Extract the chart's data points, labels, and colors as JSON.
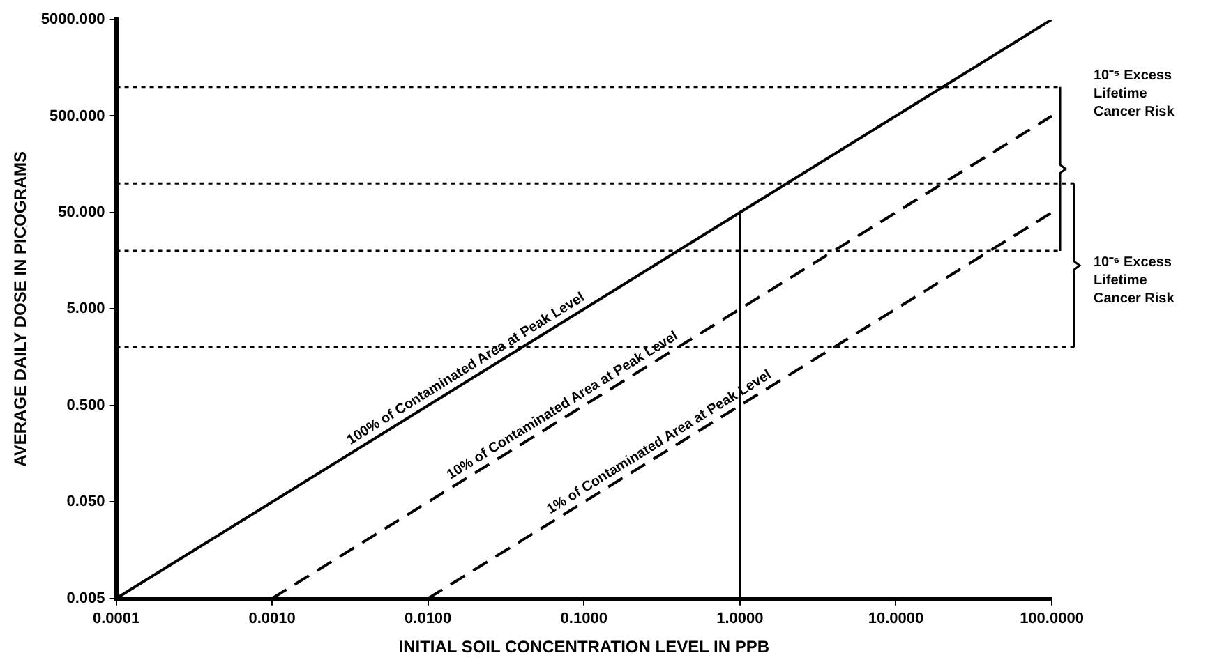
{
  "chart_data": {
    "type": "line",
    "xlabel": "INITIAL SOIL CONCENTRATION LEVEL IN PPB",
    "ylabel": "AVERAGE DAILY DOSE IN PICOGRAMS",
    "log": "xy",
    "xlim": [
      0.0001,
      100
    ],
    "xticks": [
      {
        "value": 0.0001,
        "label": "0.0001"
      },
      {
        "value": 0.001,
        "label": "0.0010"
      },
      {
        "value": 0.01,
        "label": "0.0100"
      },
      {
        "value": 0.1,
        "label": "0.1000"
      },
      {
        "value": 1,
        "label": "1.0000"
      },
      {
        "value": 10,
        "label": "10.0000"
      },
      {
        "value": 100,
        "label": "100.0000"
      }
    ],
    "ylim": [
      0.005,
      5000
    ],
    "yticks": [
      {
        "value": 0.005,
        "label": "0.005"
      },
      {
        "value": 0.05,
        "label": "0.050"
      },
      {
        "value": 0.5,
        "label": "0.500"
      },
      {
        "value": 5,
        "label": "5.000"
      },
      {
        "value": 50,
        "label": "50.000"
      },
      {
        "value": 500,
        "label": "500.000"
      },
      {
        "value": 5000,
        "label": "5000.000"
      }
    ],
    "grid": false,
    "legend": false,
    "marker": "none",
    "series": [
      {
        "name": "100% of Contaminated Area at Peak Level",
        "color": "#000000",
        "line_style": "solid",
        "x": [
          0.0001,
          100
        ],
        "values": [
          0.005,
          5000
        ]
      },
      {
        "name": "10% of Contaminated Area at Peak Level",
        "color": "#000000",
        "line_style": "dashed",
        "x": [
          0.001,
          100
        ],
        "values": [
          0.005,
          500
        ]
      },
      {
        "name": "1% of Contaminated Area at Peak Level",
        "color": "#000000",
        "line_style": "dashed",
        "x": [
          0.01,
          100
        ],
        "values": [
          0.005,
          50
        ]
      },
      {
        "color": "#000000",
        "line_style": "solid",
        "x": [
          1,
          1
        ],
        "values": [
          0.005,
          50
        ]
      }
    ],
    "ref_lines": [
      {
        "axis": "y",
        "value": 1000,
        "line_style": "dotted"
      },
      {
        "axis": "y",
        "value": 100,
        "line_style": "dotted"
      },
      {
        "axis": "y",
        "value": 20,
        "line_style": "dotted"
      },
      {
        "axis": "y",
        "value": 2,
        "line_style": "dotted"
      }
    ],
    "annotations": [
      "10⁻⁵ Excess Lifetime Cancer Risk",
      "10⁻⁶ Excess Lifetime Cancer Risk"
    ]
  }
}
